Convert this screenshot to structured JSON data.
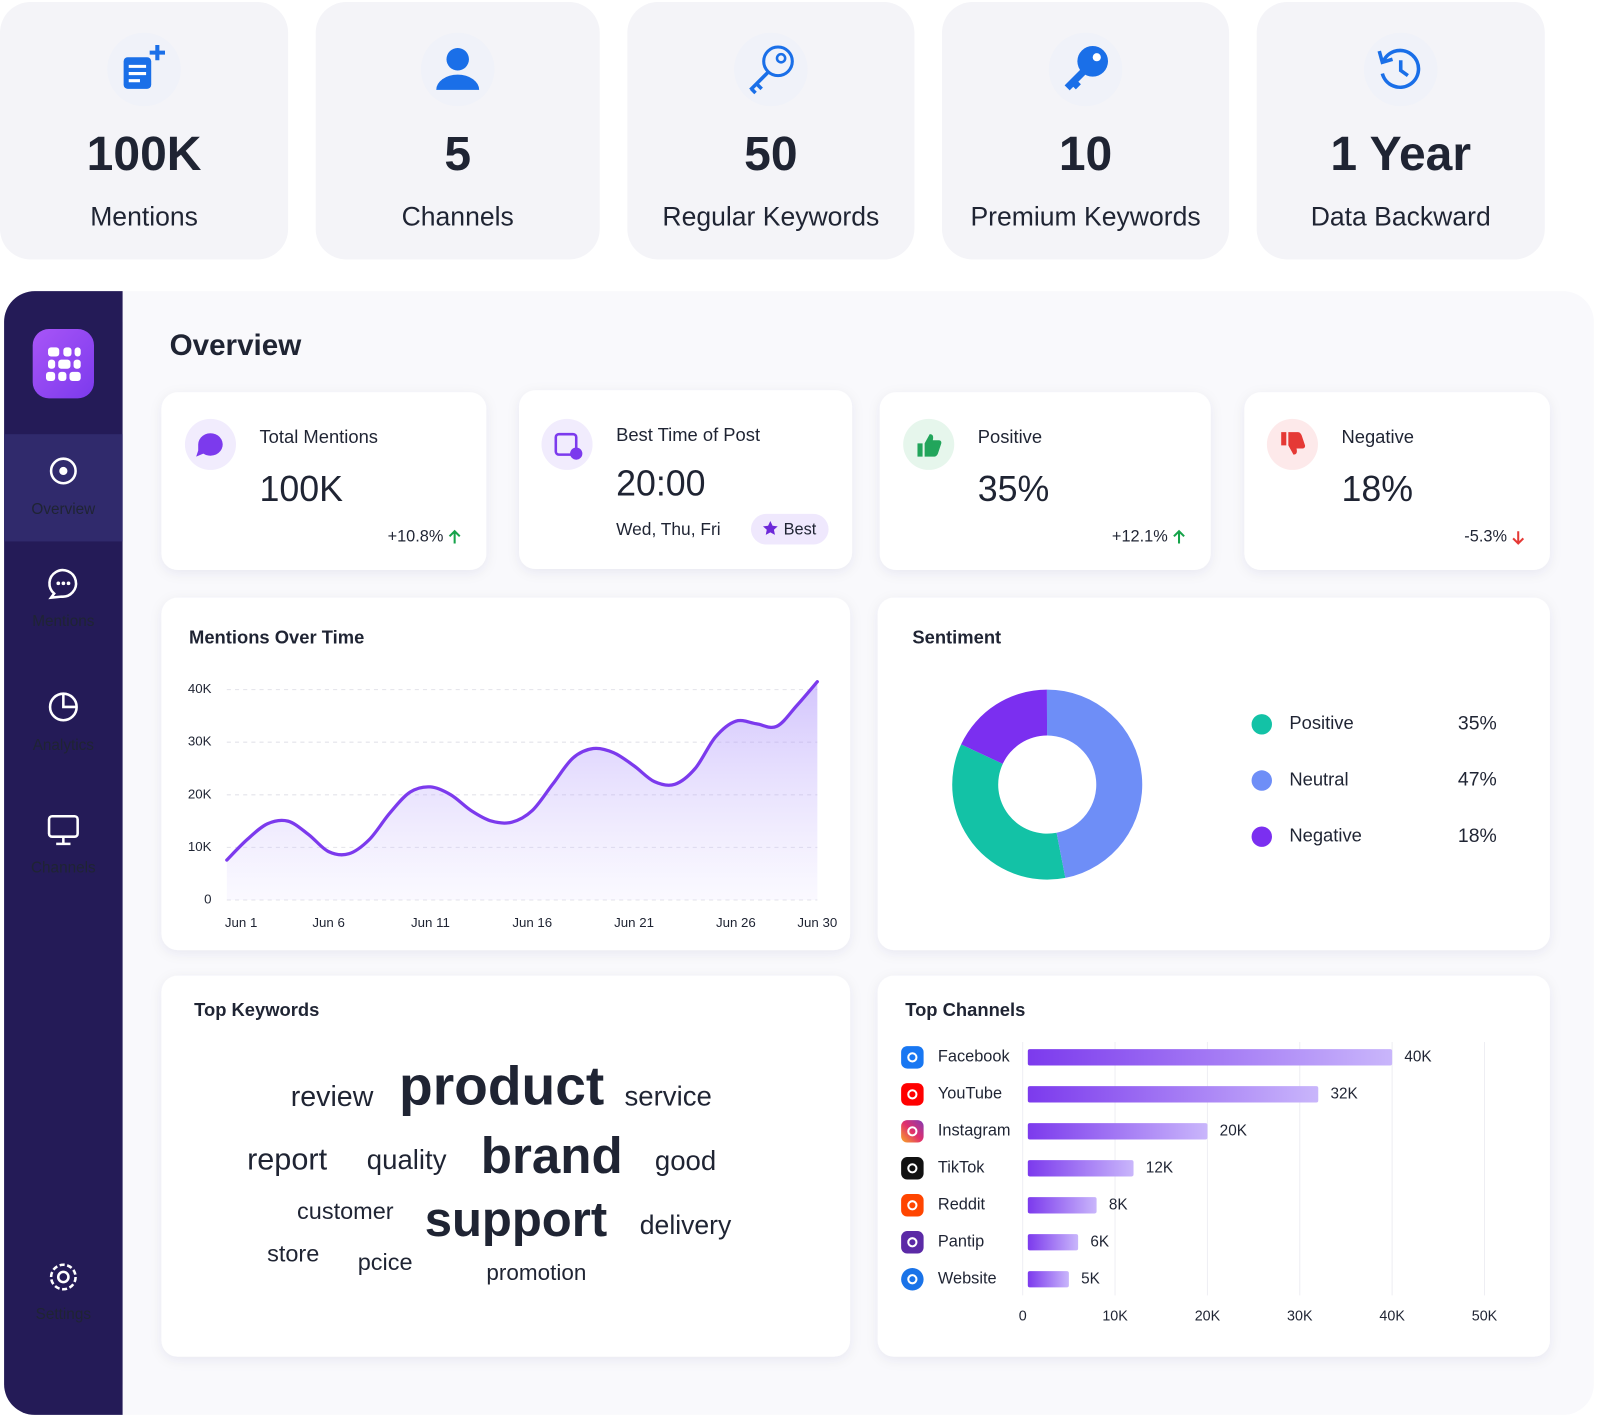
{
  "stats": [
    {
      "value": "100K",
      "label": "Mentions"
    },
    {
      "value": "5",
      "label": "Channels"
    },
    {
      "value": "50",
      "label": "Regular Keywords"
    },
    {
      "value": "10",
      "label": "Premium Keywords"
    },
    {
      "value": "1 Year",
      "label": "Data Backward"
    }
  ],
  "sidebar": {
    "items": [
      "Overview",
      "Mentions",
      "Analytics",
      "Channels"
    ],
    "settings": "Settings"
  },
  "overview": {
    "title": "Overview",
    "cards": [
      {
        "title": "Total Mentions",
        "value": "100K",
        "change": "+10.8%"
      },
      {
        "title": "Best Time of Post",
        "value": "20:00",
        "days": "Wed, Thu, Fri",
        "badge": "Best"
      },
      {
        "title": "Positive",
        "value": "35%",
        "change": "+12.1%"
      },
      {
        "title": "Negative",
        "value": "18%",
        "change": "-5.3%"
      }
    ]
  },
  "keywords": {
    "title": "Top Keywords",
    "words": [
      "review",
      "product",
      "service",
      "report",
      "quality",
      "brand",
      "good",
      "customer",
      "support",
      "delivery",
      "store",
      "pcice",
      "promotion"
    ]
  },
  "chart_data": [
    {
      "type": "line",
      "title": "Mentions Over Time",
      "x": [
        1,
        2,
        3,
        4,
        5,
        6,
        7,
        8,
        9,
        10,
        11,
        12,
        13,
        14,
        15,
        16,
        17,
        18,
        19,
        20,
        21,
        22,
        23,
        24,
        25,
        26,
        27,
        28,
        29,
        30
      ],
      "values": [
        7600,
        11500,
        14500,
        15000,
        12500,
        9200,
        8800,
        11500,
        16500,
        20500,
        21500,
        20000,
        17000,
        15000,
        14800,
        17000,
        22000,
        27000,
        28800,
        28000,
        25500,
        22500,
        22000,
        25000,
        31000,
        34000,
        33500,
        33000,
        37000,
        41500
      ],
      "color": "#7c3aed",
      "xlim": [
        1,
        30
      ],
      "xticks": [
        {
          "value": 1,
          "label": "Jun 1"
        },
        {
          "value": 6,
          "label": "Jun 6"
        },
        {
          "value": 11,
          "label": "Jun 11"
        },
        {
          "value": 16,
          "label": "Jun 16"
        },
        {
          "value": 21,
          "label": "Jun 21"
        },
        {
          "value": 26,
          "label": "Jun 26"
        },
        {
          "value": 30,
          "label": "Jun 30"
        }
      ],
      "ylim": [
        0,
        40000
      ],
      "yticks": [
        0,
        {
          "value": 10000,
          "label": "10K"
        },
        {
          "value": 20000,
          "label": "20K"
        },
        {
          "value": 30000,
          "label": "30K"
        },
        {
          "value": 40000,
          "label": "40K"
        }
      ],
      "grid": true
    },
    {
      "type": "pie",
      "title": "Sentiment",
      "donut": true,
      "categories": [
        "Positive",
        "Neutral",
        "Negative"
      ],
      "values": [
        35,
        47,
        18
      ],
      "value_labels": [
        "35%",
        "47%",
        "18%"
      ],
      "colors": [
        "#13c2a6",
        "#6e8ef7",
        "#7b2ff0"
      ]
    },
    {
      "type": "bar",
      "orientation": "horizontal",
      "title": "Top Channels",
      "categories": [
        "Facebook",
        "YouTube",
        "Instagram",
        "TikTok",
        "Reddit",
        "Pantip",
        "Website"
      ],
      "values": [
        40000,
        32000,
        20000,
        12000,
        8000,
        6000,
        5000
      ],
      "value_labels": [
        "40K",
        "32K",
        "20K",
        "12K",
        "8K",
        "6K",
        "5K"
      ],
      "color": "#7c3aed",
      "xlim": [
        0,
        50000
      ],
      "xticks": [
        0,
        {
          "value": 10000,
          "label": "10K"
        },
        {
          "value": 20000,
          "label": "20K"
        },
        {
          "value": 30000,
          "label": "30K"
        },
        {
          "value": 40000,
          "label": "40K"
        },
        {
          "value": 50000,
          "label": "50K"
        }
      ],
      "grid": true
    }
  ]
}
